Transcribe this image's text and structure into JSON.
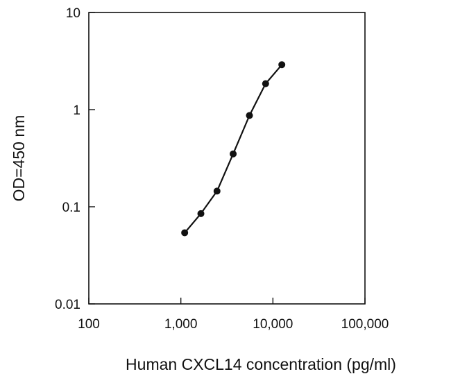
{
  "chart_data": {
    "type": "line",
    "xlabel": "Human CXCL14 concentration (pg/ml)",
    "ylabel": "OD=450 nm",
    "x_scale": "log",
    "y_scale": "log",
    "xlim": [
      100,
      100000
    ],
    "ylim": [
      0.01,
      10
    ],
    "x_ticks": [
      100,
      1000,
      10000,
      100000
    ],
    "x_tick_labels": [
      "100",
      "1,000",
      "10,000",
      "100,000"
    ],
    "y_ticks": [
      0.01,
      0.1,
      1,
      10
    ],
    "y_tick_labels": [
      "0.01",
      "0.1",
      "1",
      "10"
    ],
    "grid": false,
    "series": [
      {
        "x": [
          1100,
          1650,
          2470,
          3700,
          5560,
          8330,
          12500
        ],
        "y": [
          0.054,
          0.085,
          0.145,
          0.35,
          0.87,
          1.85,
          2.9
        ]
      }
    ],
    "colors": {
      "line": "#111111",
      "marker": "#111111",
      "axis": "#111111"
    }
  }
}
